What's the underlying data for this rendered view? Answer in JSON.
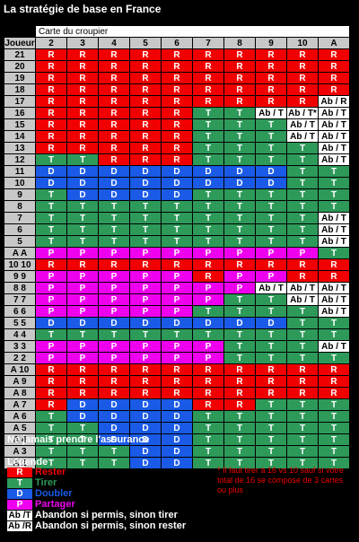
{
  "title": "La stratégie de base en France",
  "header": {
    "player_label": "Joueur",
    "dealer_title": "Carte du croupier",
    "dealer_cards": [
      "2",
      "3",
      "4",
      "5",
      "6",
      "7",
      "8",
      "9",
      "10",
      "A"
    ]
  },
  "rows": [
    {
      "label": "21",
      "cells": [
        "R",
        "R",
        "R",
        "R",
        "R",
        "R",
        "R",
        "R",
        "R",
        "R"
      ]
    },
    {
      "label": "20",
      "cells": [
        "R",
        "R",
        "R",
        "R",
        "R",
        "R",
        "R",
        "R",
        "R",
        "R"
      ]
    },
    {
      "label": "19",
      "cells": [
        "R",
        "R",
        "R",
        "R",
        "R",
        "R",
        "R",
        "R",
        "R",
        "R"
      ]
    },
    {
      "label": "18",
      "cells": [
        "R",
        "R",
        "R",
        "R",
        "R",
        "R",
        "R",
        "R",
        "R",
        "R"
      ]
    },
    {
      "label": "17",
      "cells": [
        "R",
        "R",
        "R",
        "R",
        "R",
        "R",
        "R",
        "R",
        "R",
        "Ab / R"
      ]
    },
    {
      "label": "16",
      "cells": [
        "R",
        "R",
        "R",
        "R",
        "R",
        "T",
        "T",
        "Ab / T",
        "Ab / T*",
        "Ab / T"
      ]
    },
    {
      "label": "15",
      "cells": [
        "R",
        "R",
        "R",
        "R",
        "R",
        "T",
        "T",
        "T",
        "Ab / T",
        "Ab / T"
      ]
    },
    {
      "label": "14",
      "cells": [
        "R",
        "R",
        "R",
        "R",
        "R",
        "T",
        "T",
        "T",
        "Ab / T",
        "Ab / T"
      ]
    },
    {
      "label": "13",
      "cells": [
        "R",
        "R",
        "R",
        "R",
        "R",
        "T",
        "T",
        "T",
        "T",
        "Ab / T"
      ]
    },
    {
      "label": "12",
      "cells": [
        "T",
        "T",
        "R",
        "R",
        "R",
        "T",
        "T",
        "T",
        "T",
        "Ab / T"
      ]
    },
    {
      "label": "11",
      "cells": [
        "D",
        "D",
        "D",
        "D",
        "D",
        "D",
        "D",
        "D",
        "T",
        "T"
      ]
    },
    {
      "label": "10",
      "cells": [
        "D",
        "D",
        "D",
        "D",
        "D",
        "D",
        "D",
        "D",
        "T",
        "T"
      ]
    },
    {
      "label": "9",
      "cells": [
        "T",
        "D",
        "D",
        "D",
        "D",
        "T",
        "T",
        "T",
        "T",
        "T"
      ]
    },
    {
      "label": "8",
      "cells": [
        "T",
        "T",
        "T",
        "T",
        "T",
        "T",
        "T",
        "T",
        "T",
        "T"
      ]
    },
    {
      "label": "7",
      "cells": [
        "T",
        "T",
        "T",
        "T",
        "T",
        "T",
        "T",
        "T",
        "T",
        "Ab / T"
      ]
    },
    {
      "label": "6",
      "cells": [
        "T",
        "T",
        "T",
        "T",
        "T",
        "T",
        "T",
        "T",
        "T",
        "Ab / T"
      ]
    },
    {
      "label": "5",
      "cells": [
        "T",
        "T",
        "T",
        "T",
        "T",
        "T",
        "T",
        "T",
        "T",
        "Ab / T"
      ]
    },
    {
      "label": "A  A",
      "cells": [
        "P",
        "P",
        "P",
        "P",
        "P",
        "P",
        "P",
        "P",
        "P",
        "T"
      ]
    },
    {
      "label": "10  10",
      "cells": [
        "R",
        "R",
        "R",
        "R",
        "R",
        "R",
        "R",
        "R",
        "R",
        "R"
      ]
    },
    {
      "label": "9  9",
      "cells": [
        "P",
        "P",
        "P",
        "P",
        "P",
        "R",
        "P",
        "P",
        "R",
        "R"
      ]
    },
    {
      "label": "8  8",
      "cells": [
        "P",
        "P",
        "P",
        "P",
        "P",
        "P",
        "P",
        "Ab / T",
        "Ab / T",
        "Ab / T"
      ]
    },
    {
      "label": "7  7",
      "cells": [
        "P",
        "P",
        "P",
        "P",
        "P",
        "P",
        "T",
        "T",
        "Ab / T",
        "Ab / T"
      ]
    },
    {
      "label": "6  6",
      "cells": [
        "P",
        "P",
        "P",
        "P",
        "P",
        "T",
        "T",
        "T",
        "T",
        "Ab / T"
      ]
    },
    {
      "label": "5  5",
      "cells": [
        "D",
        "D",
        "D",
        "D",
        "D",
        "D",
        "D",
        "D",
        "T",
        "T"
      ]
    },
    {
      "label": "4  4",
      "cells": [
        "T",
        "T",
        "T",
        "T",
        "T",
        "T",
        "T",
        "T",
        "T",
        "T"
      ]
    },
    {
      "label": "3  3",
      "cells": [
        "P",
        "P",
        "P",
        "P",
        "P",
        "P",
        "T",
        "T",
        "T",
        "Ab / T"
      ]
    },
    {
      "label": "2  2",
      "cells": [
        "P",
        "P",
        "P",
        "P",
        "P",
        "P",
        "T",
        "T",
        "T",
        "T"
      ]
    },
    {
      "label": "A  10",
      "cells": [
        "R",
        "R",
        "R",
        "R",
        "R",
        "R",
        "R",
        "R",
        "R",
        "R"
      ]
    },
    {
      "label": "A  9",
      "cells": [
        "R",
        "R",
        "R",
        "R",
        "R",
        "R",
        "R",
        "R",
        "R",
        "R"
      ]
    },
    {
      "label": "A  8",
      "cells": [
        "R",
        "R",
        "R",
        "R",
        "R",
        "R",
        "R",
        "R",
        "R",
        "R"
      ]
    },
    {
      "label": "A  7",
      "cells": [
        "R",
        "D",
        "D",
        "D",
        "D",
        "R",
        "R",
        "T",
        "T",
        "T"
      ]
    },
    {
      "label": "A  6",
      "cells": [
        "T",
        "D",
        "D",
        "D",
        "D",
        "T",
        "T",
        "T",
        "T",
        "T"
      ]
    },
    {
      "label": "A  5",
      "cells": [
        "T",
        "T",
        "D",
        "D",
        "D",
        "T",
        "T",
        "T",
        "T",
        "T"
      ]
    },
    {
      "label": "A  4",
      "cells": [
        "T",
        "T",
        "D",
        "D",
        "D",
        "T",
        "T",
        "T",
        "T",
        "T"
      ]
    },
    {
      "label": "A  3",
      "cells": [
        "T",
        "T",
        "T",
        "D",
        "D",
        "T",
        "T",
        "T",
        "T",
        "T"
      ]
    },
    {
      "label": "A  2",
      "cells": [
        "T",
        "T",
        "T",
        "D",
        "D",
        "T",
        "T",
        "T",
        "T",
        "T"
      ]
    }
  ],
  "note_insurance": "Ne jamais prendre l'assurance",
  "legend": {
    "title": "Légende",
    "items": [
      {
        "code": "R",
        "desc": "Rester",
        "style": "R",
        "color": "#f00000"
      },
      {
        "code": "T",
        "desc": "Tirer",
        "style": "T",
        "color": "#2e9a5a"
      },
      {
        "code": "D",
        "desc": "Doubler",
        "style": "D",
        "color": "#1a5ae6"
      },
      {
        "code": "P",
        "desc": "Partager",
        "style": "P",
        "color": "#ee00ee"
      },
      {
        "code": "Ab /T",
        "desc": "Abandon si permis, sinon tirer",
        "style": "W",
        "color": "#ffffff"
      },
      {
        "code": "Ab /R",
        "desc": "Abandon si permis, sinon rester",
        "style": "W",
        "color": "#ffffff"
      }
    ]
  },
  "footnote": "* Il faut tirer à 16 vs 10 sauf si votre total de 16 se compose de 3 cartes ou plus",
  "colors": {
    "stand": "#f00000",
    "hit": "#2e9a5a",
    "double": "#1a5ae6",
    "split": "#ee00ee",
    "surrender": "#ffffff"
  }
}
